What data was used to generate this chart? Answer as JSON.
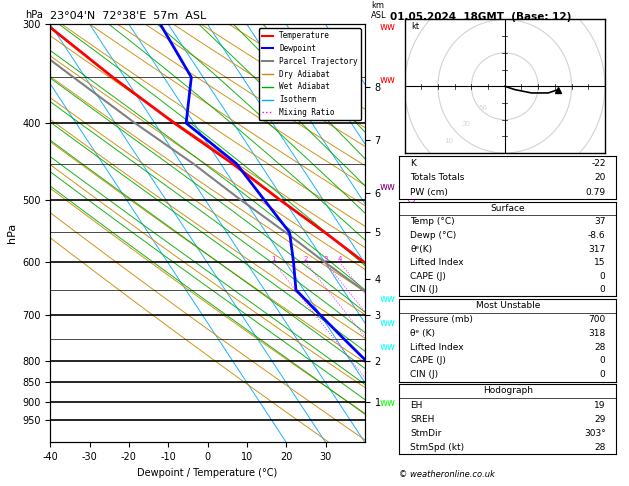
{
  "title_left": "23°04'N  72°38'E  57m  ASL",
  "title_right": "01.05.2024  18GMT  (Base: 12)",
  "xlabel": "Dewpoint / Temperature (°C)",
  "ylabel_left": "hPa",
  "xlim": [
    -40,
    40
  ],
  "temp_color": "#ff0000",
  "dewp_color": "#0000ff",
  "parcel_color": "#808080",
  "dry_adiabat_color": "#cc8800",
  "wet_adiabat_color": "#00aa00",
  "isotherm_color": "#00aaff",
  "mixing_ratio_color": "#ff00ff",
  "stats": {
    "K": "-22",
    "Totals Totals": "20",
    "PW (cm)": "0.79",
    "Surface_Temp": "37",
    "Surface_Dewp": "-8.6",
    "Surface_theta_e": "317",
    "Surface_LiftedIndex": "15",
    "Surface_CAPE": "0",
    "Surface_CIN": "0",
    "MU_Pressure": "700",
    "MU_theta_e": "318",
    "MU_LiftedIndex": "28",
    "MU_CAPE": "0",
    "MU_CIN": "0",
    "EH": "19",
    "SREH": "29",
    "StmDir": "303°",
    "StmSpd": "28"
  },
  "pressure_levels": [
    300,
    350,
    400,
    450,
    500,
    550,
    600,
    650,
    700,
    750,
    800,
    850,
    900,
    950
  ],
  "pressure_major": [
    300,
    400,
    500,
    600,
    700,
    800,
    850,
    900,
    950
  ],
  "temp_profile_p": [
    950,
    900,
    850,
    800,
    750,
    700,
    650,
    600,
    550,
    500,
    450,
    400,
    350,
    300
  ],
  "temp_profile_t": [
    37,
    32,
    26,
    20,
    14,
    8,
    4,
    0,
    -5,
    -11,
    -17,
    -25,
    -33,
    -41
  ],
  "dewp_profile_p": [
    950,
    900,
    850,
    800,
    750,
    700,
    650,
    600,
    550,
    500,
    450,
    400,
    350,
    300
  ],
  "dewp_profile_t": [
    -8.6,
    -13,
    -14,
    -16,
    -18,
    -20,
    -22,
    -18,
    -14,
    -15,
    -16,
    -22,
    -13,
    -12
  ],
  "parcel_profile_p": [
    950,
    900,
    850,
    800,
    750,
    700,
    650,
    600,
    550,
    500,
    450,
    400,
    350,
    300
  ],
  "parcel_profile_t": [
    37,
    30,
    23,
    16,
    9,
    2,
    -5,
    -10,
    -15,
    -21,
    -27,
    -35,
    -43,
    -52
  ],
  "mixing_ratios": [
    1,
    2,
    3,
    4,
    8,
    10,
    16,
    20,
    25
  ],
  "km_ticks": [
    1,
    2,
    3,
    4,
    5,
    6,
    7,
    8
  ],
  "km_pressures": [
    900,
    800,
    700,
    630,
    550,
    490,
    420,
    360
  ],
  "copyright": "© weatheronline.co.uk"
}
